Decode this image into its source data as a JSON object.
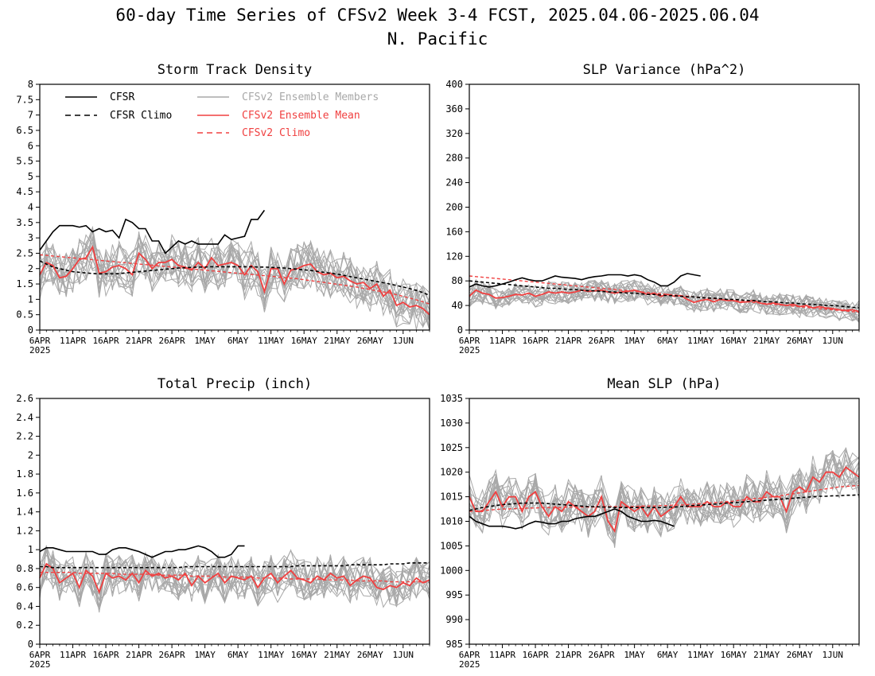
{
  "figure": {
    "title_line1": "60-day Time Series of CFSv2 Week 3-4 FCST, 2025.04.06-2025.06.04",
    "title_line2": "N. Pacific"
  },
  "colors": {
    "cfsr": "#000000",
    "ensemble_member": "#a8a8a8",
    "ensemble_mean": "#f04040",
    "axis": "#000000"
  },
  "x_axis": {
    "tick_labels": [
      "6APR",
      "11APR",
      "16APR",
      "21APR",
      "26APR",
      "1MAY",
      "6MAY",
      "11MAY",
      "16MAY",
      "21MAY",
      "26MAY",
      "1JUN"
    ],
    "year_label": "2025"
  },
  "legend": {
    "cfsr": "CFSR",
    "cfsr_climo": "CFSR Climo",
    "ens_members": "CFSv2 Ensemble Members",
    "ens_mean": "CFSv2 Ensemble Mean",
    "cfs_climo": "CFSv2 Climo",
    "placement": "top-left of first panel"
  },
  "chart_data": [
    {
      "id": "storm",
      "type": "line",
      "title": "Storm Track Density",
      "ylim": [
        0,
        8
      ],
      "yticks": [
        "0",
        "0.5",
        "1",
        "1.5",
        "2",
        "2.5",
        "3",
        "3.5",
        "4",
        "4.5",
        "5",
        "5.5",
        "6",
        "6.5",
        "7",
        "7.5",
        "8"
      ],
      "x": "day index 0-59 (2025-04-06 to 2025-06-04)",
      "series": [
        {
          "name": "CFSR",
          "values": [
            2.6,
            2.9,
            3.2,
            3.4,
            3.4,
            3.4,
            3.35,
            3.4,
            3.2,
            3.3,
            3.2,
            3.25,
            3.0,
            3.6,
            3.5,
            3.3,
            3.3,
            2.9,
            2.9,
            2.5,
            2.7,
            2.9,
            2.8,
            2.9,
            2.8,
            2.8,
            2.8,
            2.8,
            3.1,
            2.95,
            3.0,
            3.05,
            3.6,
            3.6,
            3.9
          ]
        },
        {
          "name": "CFSR Climo",
          "values": [
            2.25,
            2.15,
            2.05,
            2.0,
            1.95,
            1.9,
            1.88,
            1.86,
            1.84,
            1.83,
            1.83,
            1.83,
            1.84,
            1.86,
            1.88,
            1.9,
            1.92,
            1.94,
            1.96,
            1.98,
            2.0,
            2.02,
            2.03,
            2.04,
            2.05,
            2.05,
            2.06,
            2.06,
            2.06,
            2.06,
            2.06,
            2.06,
            2.06,
            2.05,
            2.05,
            2.04,
            2.03,
            2.02,
            2.0,
            1.98,
            1.96,
            1.94,
            1.91,
            1.88,
            1.85,
            1.82,
            1.78,
            1.74,
            1.7,
            1.66,
            1.62,
            1.58,
            1.54,
            1.5,
            1.45,
            1.4,
            1.35,
            1.29,
            1.22,
            1.13
          ]
        },
        {
          "name": "CFSv2 Ensemble Mean",
          "values": [
            1.8,
            2.2,
            2.1,
            1.7,
            1.75,
            2.0,
            2.3,
            2.35,
            2.7,
            1.85,
            1.9,
            2.05,
            2.1,
            2.0,
            1.8,
            2.5,
            2.3,
            2.0,
            2.2,
            2.2,
            2.3,
            2.1,
            2.05,
            1.95,
            2.2,
            2.0,
            2.35,
            2.1,
            2.15,
            2.2,
            2.1,
            1.8,
            2.1,
            1.9,
            1.25,
            2.0,
            2.0,
            1.5,
            1.95,
            2.0,
            2.1,
            2.15,
            1.9,
            1.8,
            1.85,
            1.7,
            1.75,
            1.6,
            1.5,
            1.55,
            1.35,
            1.5,
            1.1,
            1.3,
            0.8,
            0.9,
            0.75,
            0.8,
            0.7,
            0.5
          ]
        },
        {
          "name": "CFSv2 Climo",
          "values": [
            2.45,
            2.43,
            2.41,
            2.39,
            2.37,
            2.35,
            2.33,
            2.31,
            2.29,
            2.27,
            2.25,
            2.23,
            2.21,
            2.19,
            2.17,
            2.15,
            2.13,
            2.11,
            2.09,
            2.07,
            2.05,
            2.03,
            2.01,
            1.99,
            1.97,
            1.95,
            1.93,
            1.91,
            1.89,
            1.87,
            1.85,
            1.83,
            1.81,
            1.79,
            1.77,
            1.75,
            1.73,
            1.71,
            1.69,
            1.67,
            1.64,
            1.61,
            1.58,
            1.55,
            1.52,
            1.49,
            1.46,
            1.43,
            1.4,
            1.36,
            1.32,
            1.28,
            1.24,
            1.2,
            1.15,
            1.1,
            1.04,
            0.98,
            0.92,
            0.85
          ]
        }
      ],
      "ensemble": {
        "name": "CFSv2 Ensemble Members",
        "base": "CFSv2 Ensemble Mean",
        "spread": 0.8,
        "count": 16
      }
    },
    {
      "id": "slpvar",
      "type": "line",
      "title": "SLP Variance (hPa^2)",
      "ylim": [
        0,
        400
      ],
      "yticks": [
        "0",
        "40",
        "80",
        "120",
        "160",
        "200",
        "240",
        "280",
        "320",
        "360",
        "400"
      ],
      "x": "day index 0-59 (2025-04-06 to 2025-06-04)",
      "series": [
        {
          "name": "CFSR",
          "values": [
            70,
            75,
            72,
            70,
            72,
            75,
            78,
            82,
            85,
            82,
            80,
            80,
            84,
            88,
            86,
            85,
            84,
            82,
            85,
            87,
            88,
            90,
            90,
            90,
            88,
            90,
            88,
            82,
            78,
            72,
            72,
            78,
            88,
            92,
            90,
            88
          ]
        },
        {
          "name": "CFSR Climo",
          "values": [
            80,
            79,
            78,
            77,
            76,
            75,
            74,
            73,
            72,
            71,
            70,
            69,
            68,
            68,
            67,
            66,
            66,
            65,
            64,
            64,
            63,
            62,
            62,
            61,
            60,
            60,
            59,
            58,
            58,
            57,
            56,
            56,
            55,
            54,
            54,
            53,
            52,
            52,
            51,
            50,
            50,
            49,
            48,
            48,
            47,
            46,
            46,
            45,
            44,
            44,
            43,
            42,
            42,
            41,
            40,
            40,
            39,
            38,
            37,
            36
          ]
        },
        {
          "name": "CFSv2 Ensemble Mean",
          "values": [
            55,
            65,
            60,
            58,
            52,
            53,
            55,
            58,
            57,
            60,
            55,
            58,
            62,
            60,
            62,
            60,
            62,
            65,
            63,
            64,
            65,
            62,
            60,
            62,
            63,
            65,
            62,
            58,
            60,
            55,
            58,
            55,
            56,
            50,
            45,
            48,
            50,
            46,
            50,
            48,
            48,
            45,
            46,
            48,
            44,
            42,
            44,
            42,
            40,
            42,
            38,
            40,
            36,
            38,
            36,
            35,
            33,
            32,
            33,
            30
          ]
        },
        {
          "name": "CFSv2 Climo",
          "values": [
            88,
            87,
            86,
            85,
            84,
            83,
            82,
            81,
            80,
            79,
            78,
            77,
            76,
            75,
            74,
            73,
            72,
            71,
            70,
            69,
            68,
            67,
            66,
            65,
            64,
            63,
            62,
            61,
            60,
            59,
            58,
            57,
            56,
            55,
            54,
            53,
            52,
            51,
            50,
            49,
            48,
            47,
            46,
            45,
            44,
            43,
            42,
            41,
            40,
            39,
            38,
            37,
            36,
            35,
            34,
            33,
            32,
            31,
            30,
            29
          ]
        }
      ],
      "ensemble": {
        "name": "CFSv2 Ensemble Members",
        "base": "CFSv2 Ensemble Mean",
        "spread": 18,
        "count": 16
      }
    },
    {
      "id": "precip",
      "type": "line",
      "title": "Total Precip (inch)",
      "ylim": [
        0,
        2.6
      ],
      "yticks": [
        "0",
        "0.2",
        "0.4",
        "0.6",
        "0.8",
        "1",
        "1.2",
        "1.4",
        "1.6",
        "1.8",
        "2",
        "2.2",
        "2.4",
        "2.6"
      ],
      "x": "day index 0-59 (2025-04-06 to 2025-06-04)",
      "series": [
        {
          "name": "CFSR",
          "values": [
            0.98,
            1.02,
            1.02,
            1.0,
            0.98,
            0.98,
            0.98,
            0.98,
            0.98,
            0.95,
            0.95,
            1.0,
            1.02,
            1.02,
            1.0,
            0.98,
            0.95,
            0.92,
            0.95,
            0.98,
            0.98,
            1.0,
            1.0,
            1.02,
            1.04,
            1.02,
            0.98,
            0.92,
            0.92,
            0.95,
            1.04,
            1.04
          ]
        },
        {
          "name": "CFSR Climo",
          "values": [
            0.82,
            0.82,
            0.81,
            0.81,
            0.81,
            0.81,
            0.81,
            0.81,
            0.81,
            0.81,
            0.81,
            0.81,
            0.81,
            0.81,
            0.81,
            0.81,
            0.81,
            0.81,
            0.81,
            0.81,
            0.81,
            0.81,
            0.82,
            0.82,
            0.82,
            0.82,
            0.82,
            0.82,
            0.82,
            0.82,
            0.82,
            0.82,
            0.82,
            0.82,
            0.82,
            0.82,
            0.82,
            0.82,
            0.82,
            0.83,
            0.83,
            0.83,
            0.83,
            0.83,
            0.83,
            0.83,
            0.83,
            0.84,
            0.84,
            0.84,
            0.84,
            0.84,
            0.84,
            0.85,
            0.85,
            0.85,
            0.86,
            0.86,
            0.86,
            0.86
          ]
        },
        {
          "name": "CFSv2 Ensemble Mean",
          "values": [
            0.7,
            0.85,
            0.8,
            0.65,
            0.7,
            0.75,
            0.6,
            0.78,
            0.72,
            0.55,
            0.75,
            0.7,
            0.72,
            0.68,
            0.75,
            0.65,
            0.78,
            0.72,
            0.75,
            0.7,
            0.72,
            0.68,
            0.75,
            0.62,
            0.72,
            0.65,
            0.7,
            0.75,
            0.65,
            0.72,
            0.7,
            0.68,
            0.72,
            0.6,
            0.7,
            0.75,
            0.65,
            0.72,
            0.78,
            0.7,
            0.68,
            0.65,
            0.72,
            0.68,
            0.75,
            0.7,
            0.72,
            0.62,
            0.68,
            0.72,
            0.7,
            0.6,
            0.58,
            0.62,
            0.6,
            0.65,
            0.62,
            0.7,
            0.65,
            0.68
          ]
        },
        {
          "name": "CFSv2 Climo",
          "values": [
            0.76,
            0.76,
            0.76,
            0.76,
            0.76,
            0.76,
            0.75,
            0.75,
            0.75,
            0.75,
            0.75,
            0.75,
            0.74,
            0.74,
            0.74,
            0.74,
            0.74,
            0.74,
            0.73,
            0.73,
            0.73,
            0.73,
            0.73,
            0.72,
            0.72,
            0.72,
            0.72,
            0.72,
            0.71,
            0.71,
            0.71,
            0.71,
            0.71,
            0.7,
            0.7,
            0.7,
            0.7,
            0.7,
            0.69,
            0.69,
            0.69,
            0.69,
            0.69,
            0.68,
            0.68,
            0.68,
            0.68,
            0.68,
            0.67,
            0.67,
            0.67,
            0.67,
            0.67,
            0.66,
            0.66,
            0.66,
            0.66,
            0.66,
            0.66,
            0.65
          ]
        }
      ],
      "ensemble": {
        "name": "CFSv2 Ensemble Members",
        "base": "CFSv2 Ensemble Mean",
        "spread": 0.22,
        "count": 16
      }
    },
    {
      "id": "mslp",
      "type": "line",
      "title": "Mean SLP (hPa)",
      "ylim": [
        985,
        1035
      ],
      "yticks": [
        "985",
        "990",
        "995",
        "1000",
        "1005",
        "1010",
        "1015",
        "1020",
        "1025",
        "1030",
        "1035"
      ],
      "x": "day index 0-59 (2025-04-06 to 2025-06-04)",
      "series": [
        {
          "name": "CFSR",
          "values": [
            1011,
            1010,
            1009.5,
            1009,
            1009,
            1009,
            1008.8,
            1008.5,
            1008.8,
            1009.5,
            1010,
            1009.8,
            1009.5,
            1009.5,
            1010,
            1010,
            1010.5,
            1010.8,
            1011,
            1011,
            1011.5,
            1012,
            1012.5,
            1012,
            1011,
            1010.5,
            1010,
            1010,
            1010.2,
            1010,
            1009.5,
            1009
          ]
        },
        {
          "name": "CFSR Climo",
          "values": [
            1012.2,
            1012.5,
            1012.8,
            1013.0,
            1013.2,
            1013.4,
            1013.5,
            1013.6,
            1013.7,
            1013.7,
            1013.7,
            1013.7,
            1013.6,
            1013.5,
            1013.4,
            1013.3,
            1013.2,
            1013.1,
            1013.0,
            1013.0,
            1012.9,
            1012.9,
            1012.8,
            1012.8,
            1012.8,
            1012.8,
            1012.8,
            1012.8,
            1012.8,
            1012.8,
            1012.9,
            1012.9,
            1013.0,
            1013.1,
            1013.2,
            1013.3,
            1013.4,
            1013.5,
            1013.6,
            1013.7,
            1013.8,
            1013.9,
            1014.0,
            1014.1,
            1014.2,
            1014.3,
            1014.4,
            1014.5,
            1014.6,
            1014.7,
            1014.8,
            1014.9,
            1015.0,
            1015.1,
            1015.1,
            1015.2,
            1015.2,
            1015.3,
            1015.3,
            1015.4
          ]
        },
        {
          "name": "CFSv2 Ensemble Mean",
          "values": [
            1015,
            1012,
            1012,
            1014,
            1016,
            1013,
            1015,
            1015,
            1012,
            1015,
            1016,
            1013,
            1011,
            1013,
            1012,
            1014,
            1013,
            1012,
            1011,
            1012,
            1015,
            1010,
            1008,
            1014,
            1013,
            1012,
            1013,
            1011,
            1013,
            1011,
            1012,
            1013,
            1015,
            1013,
            1013,
            1013,
            1014,
            1013,
            1013,
            1014,
            1013,
            1013,
            1015,
            1014,
            1014,
            1016,
            1015,
            1015,
            1012,
            1016,
            1017,
            1016,
            1019,
            1018,
            1020,
            1020,
            1019,
            1021,
            1020,
            1019
          ]
        },
        {
          "name": "CFSv2 Climo",
          "values": [
            1012.0,
            1012.1,
            1012.2,
            1012.3,
            1012.4,
            1012.5,
            1012.5,
            1012.6,
            1012.6,
            1012.7,
            1012.7,
            1012.8,
            1012.8,
            1012.8,
            1012.8,
            1012.9,
            1012.9,
            1012.9,
            1012.9,
            1012.9,
            1013.0,
            1013.0,
            1013.0,
            1013.0,
            1013.0,
            1013.0,
            1013.1,
            1013.1,
            1013.1,
            1013.2,
            1013.2,
            1013.3,
            1013.3,
            1013.4,
            1013.5,
            1013.6,
            1013.7,
            1013.8,
            1013.9,
            1014.0,
            1014.1,
            1014.3,
            1014.4,
            1014.6,
            1014.7,
            1014.9,
            1015.0,
            1015.2,
            1015.4,
            1015.6,
            1015.8,
            1016.0,
            1016.2,
            1016.4,
            1016.6,
            1016.8,
            1017.0,
            1017.1,
            1017.2,
            1017.3
          ]
        }
      ],
      "ensemble": {
        "name": "CFSv2 Ensemble Members",
        "base": "CFSv2 Ensemble Mean",
        "spread": 4.5,
        "count": 16
      }
    }
  ]
}
